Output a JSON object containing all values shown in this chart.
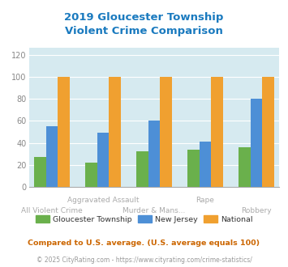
{
  "title": "2019 Gloucester Township\nViolent Crime Comparison",
  "title_color": "#1a7abf",
  "gloucester": [
    27,
    22,
    32,
    34,
    36
  ],
  "newjersey": [
    55,
    49,
    60,
    41,
    80
  ],
  "national": [
    100,
    100,
    100,
    100,
    100
  ],
  "gloucester_color": "#6ab04c",
  "newjersey_color": "#4d8fd6",
  "national_color": "#f0a030",
  "yticks": [
    0,
    20,
    40,
    60,
    80,
    100,
    120
  ],
  "ylim": [
    0,
    126
  ],
  "xlim": [
    -0.45,
    4.45
  ],
  "plot_bg_color": "#d6eaf0",
  "fig_bg_color": "#ffffff",
  "legend_labels": [
    "Gloucester Township",
    "New Jersey",
    "National"
  ],
  "footnote1": "Compared to U.S. average. (U.S. average equals 100)",
  "footnote2": "© 2025 CityRating.com - https://www.cityrating.com/crime-statistics/",
  "footnote1_color": "#cc6600",
  "footnote2_color": "#999999",
  "footnote2_link_color": "#4488cc",
  "bar_width": 0.23,
  "group_positions": [
    0,
    1,
    2,
    3,
    4
  ],
  "xtick_top": [
    "",
    "Aggravated Assault",
    "",
    "Rape",
    ""
  ],
  "xtick_bot": [
    "All Violent Crime",
    "Murder & Mans...",
    "Murder & Mans...",
    "",
    "Robbery"
  ],
  "xtick_color": "#aaaaaa"
}
